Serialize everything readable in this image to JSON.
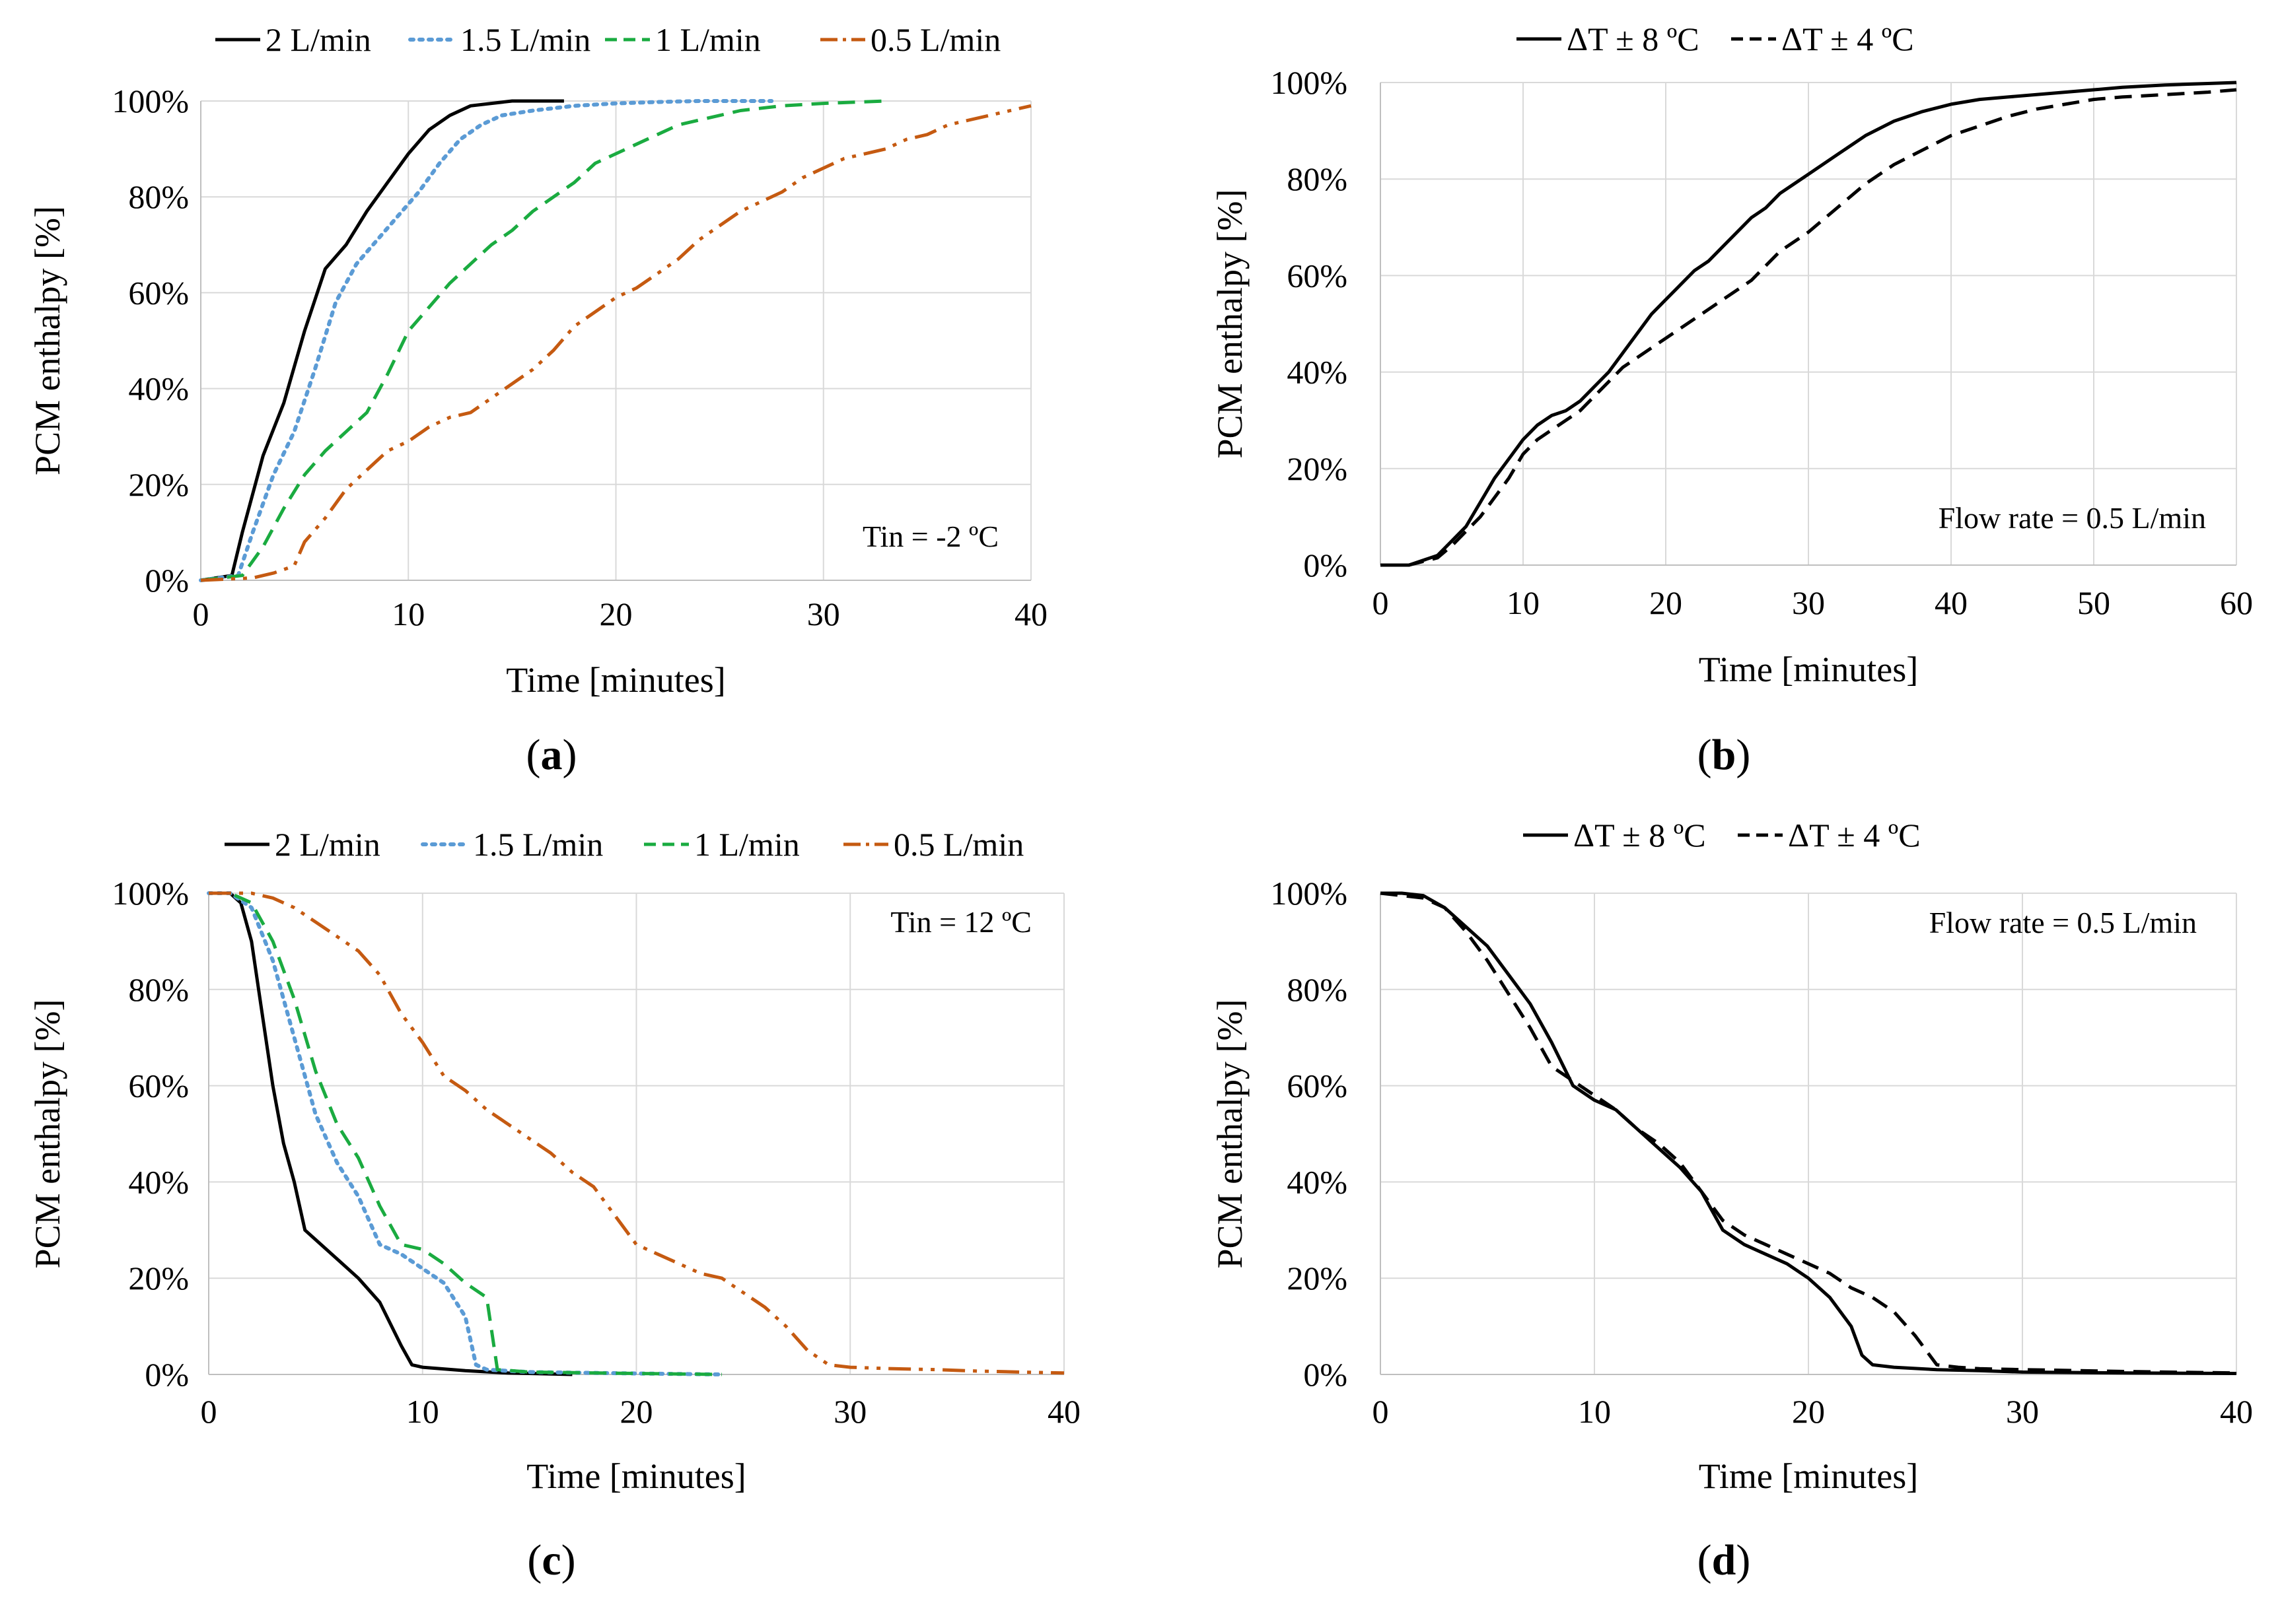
{
  "chart_data": [
    {
      "id": "a",
      "type": "line",
      "panel_label": "a",
      "xlabel": "Time [minutes]",
      "ylabel": "PCM enthalpy  [%]",
      "xlim": [
        0,
        40
      ],
      "ylim": [
        0,
        100
      ],
      "xticks": [
        0,
        10,
        20,
        30,
        40
      ],
      "yticks": [
        0,
        20,
        40,
        60,
        80,
        100
      ],
      "annotation": "Tin = -2 ºC",
      "legend_position": "top",
      "series": [
        {
          "name": "2 L/min",
          "color": "#000000",
          "dash": "solid",
          "x": [
            0,
            1.5,
            2,
            3,
            4,
            5,
            6,
            7,
            8,
            9,
            10,
            11,
            12,
            13,
            14,
            15,
            17.5
          ],
          "y": [
            0,
            1,
            10,
            26,
            37,
            52,
            65,
            70,
            77,
            83,
            89,
            94,
            97,
            99,
            99.5,
            100,
            100
          ]
        },
        {
          "name": "1.5 L/min",
          "color": "#5B9BD5",
          "dash": "dot",
          "x": [
            0,
            1.8,
            2.5,
            3.5,
            4.5,
            5.5,
            6.5,
            7.5,
            8.5,
            9.5,
            10.5,
            11.5,
            12.5,
            13.5,
            14.5,
            16,
            18,
            20,
            22,
            24,
            26,
            27.5
          ],
          "y": [
            0,
            1,
            10,
            22,
            31,
            44,
            58,
            66,
            71,
            76,
            81,
            87,
            92,
            95,
            97,
            98,
            99,
            99.5,
            99.8,
            100,
            100,
            100
          ]
        },
        {
          "name": "1 L/min",
          "color": "#1AAB40",
          "dash": "dash",
          "x": [
            0,
            2,
            3,
            4,
            5,
            6,
            7,
            8,
            9,
            10,
            11,
            12,
            13,
            14,
            15,
            16,
            17,
            18,
            19,
            20,
            21,
            22,
            23,
            24,
            25,
            26,
            28,
            30,
            33
          ],
          "y": [
            0,
            1,
            7,
            15,
            22,
            27,
            31,
            35,
            43,
            52,
            57,
            62,
            66,
            70,
            73,
            77,
            80,
            83,
            87,
            89,
            91,
            93,
            95,
            96,
            97,
            98,
            99,
            99.5,
            100
          ]
        },
        {
          "name": "0.5 L/min",
          "color": "#C55A11",
          "dash": "dashdotdot",
          "x": [
            0,
            2.5,
            3.5,
            4.5,
            5,
            6,
            7,
            8,
            9,
            10,
            11,
            12,
            13,
            14,
            15,
            16,
            17,
            18,
            19,
            20,
            21,
            22,
            23,
            24,
            25,
            26,
            27,
            28,
            29,
            30,
            31,
            32,
            33,
            34,
            35,
            36,
            37,
            38,
            39,
            40
          ],
          "y": [
            0,
            0.5,
            1.5,
            3,
            8,
            13,
            19,
            23,
            27,
            29,
            32,
            34,
            35,
            38,
            41,
            44,
            48,
            53,
            56,
            59,
            61,
            64,
            67,
            71,
            74,
            77,
            79,
            81,
            84,
            86,
            88,
            89,
            90,
            92,
            93,
            95,
            96,
            97,
            98,
            99
          ]
        }
      ]
    },
    {
      "id": "b",
      "type": "line",
      "panel_label": "b",
      "xlabel": "Time [minutes]",
      "ylabel": "PCM enthalpy  [%]",
      "xlim": [
        0,
        60
      ],
      "ylim": [
        0,
        100
      ],
      "xticks": [
        0,
        10,
        20,
        30,
        40,
        50,
        60
      ],
      "yticks": [
        0,
        20,
        40,
        60,
        80,
        100
      ],
      "annotation": "Flow rate = 0.5 L/min",
      "legend_position": "top",
      "series": [
        {
          "name": "ΔT ± 8 ºC",
          "color": "#000000",
          "dash": "solid",
          "x": [
            0,
            2,
            4,
            5,
            6,
            7,
            8,
            9,
            10,
            11,
            12,
            13,
            14,
            15,
            16,
            17,
            18,
            19,
            20,
            21,
            22,
            23,
            24,
            25,
            26,
            27,
            28,
            29,
            30,
            32,
            34,
            36,
            38,
            40,
            42,
            44,
            46,
            48,
            50,
            52,
            55,
            58,
            60
          ],
          "y": [
            0,
            0,
            2,
            5,
            8,
            13,
            18,
            22,
            26,
            29,
            31,
            32,
            34,
            37,
            40,
            44,
            48,
            52,
            55,
            58,
            61,
            63,
            66,
            69,
            72,
            74,
            77,
            79,
            81,
            85,
            89,
            92,
            94,
            95.5,
            96.5,
            97,
            97.5,
            98,
            98.5,
            99,
            99.5,
            99.8,
            100
          ]
        },
        {
          "name": "ΔT ± 4 ºC",
          "color": "#000000",
          "dash": "dash",
          "x": [
            0,
            2,
            4,
            5,
            6,
            7,
            8,
            9,
            10,
            11,
            12,
            13,
            14,
            15,
            16,
            17,
            18,
            19,
            20,
            21,
            22,
            23,
            24,
            25,
            26,
            27,
            28,
            29,
            30,
            32,
            34,
            36,
            38,
            40,
            42,
            44,
            46,
            48,
            50,
            52,
            55,
            58,
            60
          ],
          "y": [
            0,
            0,
            1.5,
            4,
            7,
            10,
            14,
            18,
            23,
            26,
            28,
            30,
            32,
            35,
            38,
            41,
            43,
            45,
            47,
            49,
            51,
            53,
            55,
            57,
            59,
            62,
            65,
            67,
            69,
            74,
            79,
            83,
            86,
            89,
            91,
            93,
            94.5,
            95.5,
            96.5,
            97,
            97.5,
            98,
            98.5
          ]
        }
      ]
    },
    {
      "id": "c",
      "type": "line",
      "panel_label": "c",
      "xlabel": "Time [minutes]",
      "ylabel": "PCM enthalpy  [%]",
      "xlim": [
        0,
        40
      ],
      "ylim": [
        0,
        100
      ],
      "xticks": [
        0,
        10,
        20,
        30,
        40
      ],
      "yticks": [
        0,
        20,
        40,
        60,
        80,
        100
      ],
      "annotation": "Tin = 12 ºC",
      "legend_position": "top",
      "series": [
        {
          "name": "2 L/min",
          "color": "#000000",
          "dash": "solid",
          "x": [
            0,
            1,
            1.5,
            2,
            2.5,
            3,
            3.5,
            4,
            4.5,
            5,
            6,
            7,
            8,
            9,
            9.5,
            10,
            12,
            14,
            16,
            17
          ],
          "y": [
            100,
            100,
            98,
            90,
            75,
            60,
            48,
            40,
            30,
            28,
            24,
            20,
            15,
            6,
            2,
            1.5,
            0.8,
            0.3,
            0.1,
            0
          ]
        },
        {
          "name": "1.5 L/min",
          "color": "#5B9BD5",
          "dash": "dot",
          "x": [
            0,
            1,
            2,
            3,
            4,
            5,
            6,
            7,
            8,
            9,
            10,
            11,
            12,
            12.5,
            13,
            15,
            20,
            24
          ],
          "y": [
            100,
            100,
            97,
            86,
            70,
            54,
            44,
            37,
            27,
            25,
            22,
            19,
            12,
            2,
            1,
            0.5,
            0.2,
            0
          ]
        },
        {
          "name": "1 L/min",
          "color": "#1AAB40",
          "dash": "dash",
          "x": [
            0,
            1,
            2,
            3,
            4,
            5,
            6,
            7,
            8,
            9,
            10,
            11,
            12,
            13,
            13.5,
            15,
            20,
            24
          ],
          "y": [
            100,
            100,
            98,
            90,
            78,
            63,
            52,
            45,
            35,
            27,
            26,
            23,
            19,
            16,
            1,
            0.5,
            0.2,
            0
          ]
        },
        {
          "name": "0.5 L/min",
          "color": "#C55A11",
          "dash": "dashdotdot",
          "x": [
            0,
            2,
            3,
            4,
            5,
            6,
            7,
            8,
            9,
            10,
            11,
            12,
            13,
            14,
            15,
            16,
            17,
            18,
            19,
            20,
            21,
            22,
            23,
            24,
            25,
            26,
            27,
            28,
            29,
            30,
            32,
            34,
            36,
            38,
            40
          ],
          "y": [
            100,
            100,
            99,
            97,
            94,
            91,
            88,
            83,
            75,
            69,
            62,
            59,
            55,
            52,
            49,
            46,
            42,
            39,
            33,
            27,
            25,
            23,
            21,
            20,
            17,
            14,
            10,
            5,
            2,
            1.5,
            1.2,
            1,
            0.7,
            0.5,
            0.3
          ]
        }
      ]
    },
    {
      "id": "d",
      "type": "line",
      "panel_label": "d",
      "xlabel": "Time [minutes]",
      "ylabel": "PCM enthalpy  [%]",
      "xlim": [
        0,
        40
      ],
      "ylim": [
        0,
        100
      ],
      "xticks": [
        0,
        10,
        20,
        30,
        40
      ],
      "yticks": [
        0,
        20,
        40,
        60,
        80,
        100
      ],
      "annotation": "Flow rate = 0.5 L/min",
      "legend_position": "top",
      "series": [
        {
          "name": "ΔT ± 8 ºC",
          "color": "#000000",
          "dash": "solid",
          "x": [
            0,
            1,
            2,
            3,
            4,
            5,
            6,
            7,
            8,
            9,
            10,
            11,
            12,
            13,
            14,
            15,
            16,
            17,
            18,
            19,
            20,
            21,
            22,
            22.5,
            23,
            24,
            26,
            28,
            30,
            35,
            40
          ],
          "y": [
            100,
            100,
            99.5,
            97,
            93,
            89,
            83,
            77,
            69,
            60,
            57,
            55,
            51,
            47,
            43,
            38,
            30,
            27,
            25,
            23,
            20,
            16,
            10,
            4,
            2,
            1.5,
            1,
            0.8,
            0.5,
            0.3,
            0.2
          ]
        },
        {
          "name": "ΔT ± 4 ºC",
          "color": "#000000",
          "dash": "dash",
          "x": [
            0,
            1,
            2,
            3,
            4,
            5,
            6,
            7,
            8,
            9,
            10,
            11,
            12,
            13,
            14,
            15,
            16,
            17,
            18,
            19,
            20,
            21,
            22,
            23,
            24,
            25,
            26,
            27,
            28,
            30,
            35,
            40
          ],
          "y": [
            100,
            99.5,
            99,
            97,
            92,
            86,
            79,
            72,
            64,
            61,
            58,
            55,
            51,
            48,
            44,
            38,
            32,
            29,
            27,
            25,
            23,
            21,
            18,
            16,
            13,
            8,
            2,
            1.5,
            1.2,
            1,
            0.6,
            0.3
          ]
        }
      ]
    }
  ]
}
